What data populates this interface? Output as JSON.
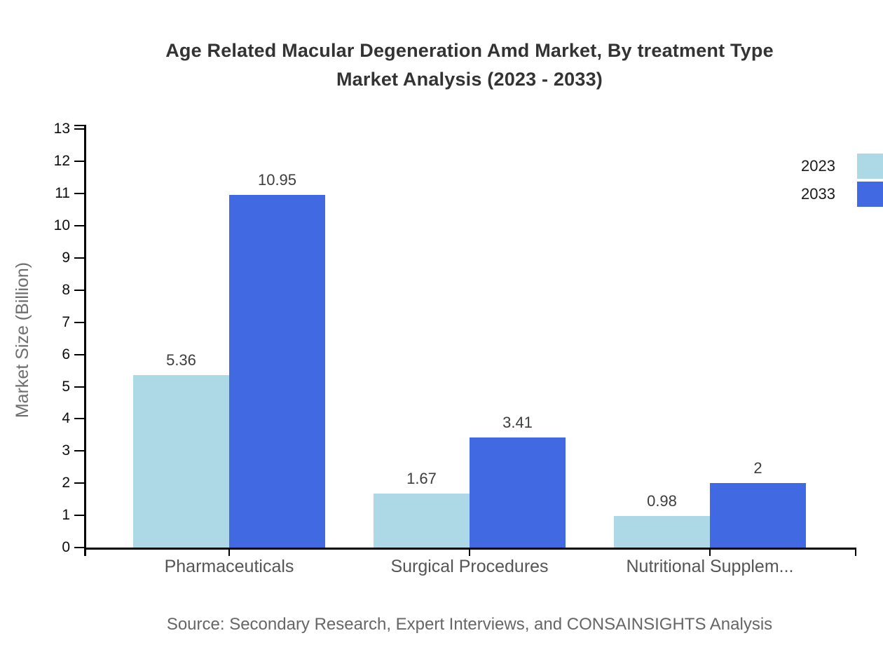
{
  "chart": {
    "title_line1": "Age Related Macular Degeneration Amd Market, By treatment Type",
    "title_line2": "Market Analysis (2023 - 2033)",
    "source": "Source: Secondary Research, Expert Interviews, and CONSAINSIGHTS Analysis"
  },
  "chart_data": {
    "type": "bar",
    "title": "Age Related Macular Degeneration Amd Market, By treatment Type Market Analysis (2023 - 2033)",
    "categories": [
      "Pharmaceuticals",
      "Surgical Procedures",
      "Nutritional Supplem..."
    ],
    "series": [
      {
        "name": "2023",
        "color": "#ADD8E6",
        "values": [
          5.36,
          1.67,
          0.98
        ],
        "value_labels": [
          "5.36",
          "1.67",
          "0.98"
        ]
      },
      {
        "name": "2033",
        "color": "#4169E1",
        "values": [
          10.95,
          3.41,
          2
        ],
        "value_labels": [
          "10.95",
          "3.41",
          "2"
        ]
      }
    ],
    "xlabel": "",
    "ylabel": "Market Size (Billion)",
    "ylim": [
      0,
      13
    ],
    "ytick_step": 1,
    "grid": false,
    "legend_position": "top-right",
    "legend_entries": [
      "2023",
      "2033"
    ]
  }
}
